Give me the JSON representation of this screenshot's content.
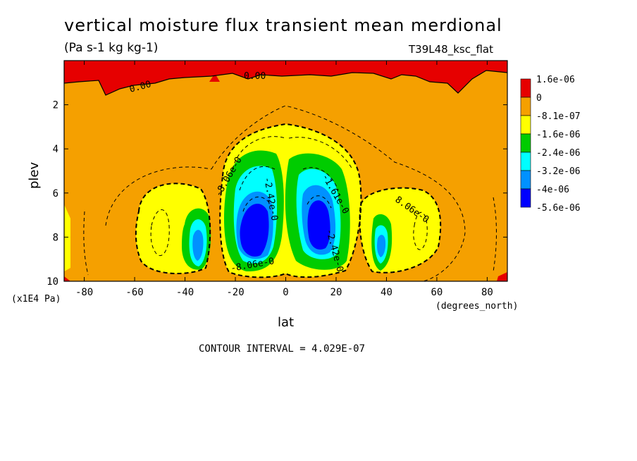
{
  "title": "vertical moisture flux transient mean merdional",
  "units": "(Pa s-1 kg kg-1)",
  "dataset": "T39L48_ksc_flat",
  "contour_interval": "CONTOUR INTERVAL = 4.029E-07",
  "chart_data": {
    "type": "heatmap",
    "title": "vertical moisture flux transient mean merdional",
    "subtitle": "(Pa s-1 kg kg-1)",
    "xlabel": "lat",
    "ylabel": "plev",
    "x_units": "(degrees_north)",
    "y_units": "(x1E4 Pa)",
    "xlim": [
      -88,
      88
    ],
    "ylim": [
      10,
      0
    ],
    "x_ticks": [
      "-80",
      "-60",
      "-40",
      "-20",
      "0",
      "20",
      "40",
      "60",
      "80"
    ],
    "x_tick_values": [
      -80,
      -60,
      -40,
      -20,
      0,
      20,
      40,
      60,
      80
    ],
    "y_ticks": [
      "2",
      "4",
      "6",
      "8",
      "10"
    ],
    "y_tick_values": [
      2,
      4,
      6,
      8,
      10
    ],
    "legend": {
      "placement": "right",
      "labels": [
        "1.6e-06",
        "0",
        "-8.1e-07",
        "-1.6e-06",
        "-2.4e-06",
        "-3.2e-06",
        "-4e-06",
        "-5.6e-06"
      ],
      "colors": [
        "#e60000",
        "#f5a000",
        "#ffff00",
        "#00cc00",
        "#00ffff",
        "#0091ff",
        "#0000ff"
      ]
    },
    "contour_labels": [
      "0.00",
      "0.00",
      "-8.06e-0",
      "-8.06e-0",
      "-2.42e-0",
      "-1.61e-0",
      "-2.42e-0",
      "-8.06e-0",
      "8.06e-0"
    ],
    "colors": {
      "positive": "#e60000",
      "near_zero": "#f5a000",
      "level1": "#ffff00",
      "level2": "#00cc00",
      "level3": "#00ffff",
      "level4": "#0091ff",
      "level5": "#0000ff"
    }
  }
}
